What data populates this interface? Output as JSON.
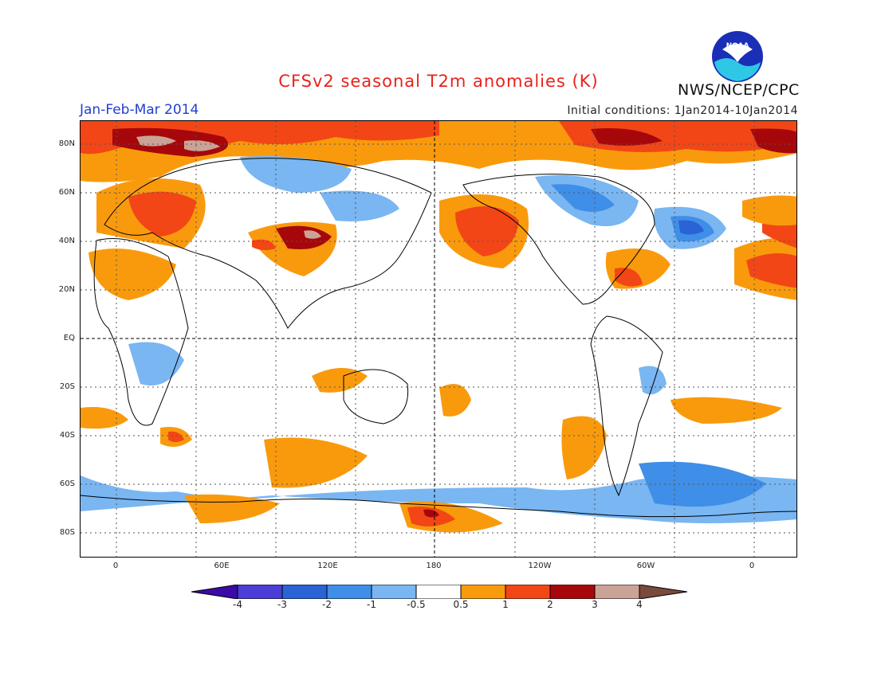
{
  "header": {
    "title": "CFSv2 seasonal T2m anomalies (K)",
    "period": "Jan-Feb-Mar 2014",
    "initial_conditions": "Initial conditions: 1Jan2014-10Jan2014",
    "agency": "NWS/NCEP/CPC",
    "logo_text": "NOAA"
  },
  "map": {
    "latitude_labels": [
      "80N",
      "60N",
      "40N",
      "20N",
      "EQ",
      "20S",
      "40S",
      "60S",
      "80S"
    ],
    "longitude_labels": [
      "0",
      "60E",
      "120E",
      "180",
      "120W",
      "60W",
      "0"
    ],
    "gridlines": "dotted every 30°, dashed at Equator and 180",
    "projection": "cylindrical equidistant, 20W to 30E wrap"
  },
  "colorbar": {
    "labels": [
      "-4",
      "-3",
      "-2",
      "-1",
      "-0.5",
      "0.5",
      "1",
      "2",
      "3",
      "4"
    ],
    "colors": [
      "#3b0ba6",
      "#4a3ed6",
      "#2a63d6",
      "#3f8ee8",
      "#79b6f2",
      "#ffffff",
      "#f99a0d",
      "#f34616",
      "#a6070b",
      "#cba396",
      "#7a4a3c"
    ]
  }
}
